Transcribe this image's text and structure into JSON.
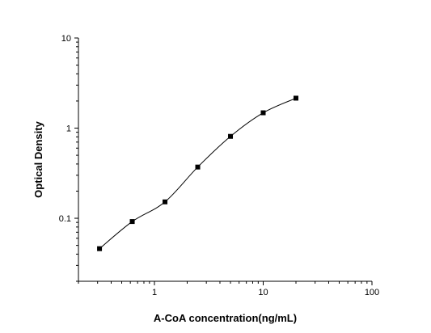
{
  "chart_data": {
    "type": "scatter",
    "title": "",
    "xlabel": "A-CoA concentration(ng/mL)",
    "ylabel": "Optical Density",
    "xscale": "log",
    "yscale": "log",
    "xlim": [
      0.2,
      100
    ],
    "ylim": [
      0.02,
      10
    ],
    "x_ticks": [
      {
        "value": 1,
        "label": "1"
      },
      {
        "value": 10,
        "label": "10"
      },
      {
        "value": 100,
        "label": "100"
      }
    ],
    "y_ticks": [
      {
        "value": 0.1,
        "label": "0.1"
      },
      {
        "value": 1,
        "label": "1"
      },
      {
        "value": 10,
        "label": "10"
      }
    ],
    "grid": false,
    "legend": "none",
    "marker": "square",
    "fit": "4-parameter logistic curve",
    "color": "#000000",
    "series": [
      {
        "x": [
          0.3125,
          0.625,
          1.25,
          2.5,
          5,
          10,
          20
        ],
        "y": [
          0.046,
          0.092,
          0.152,
          0.37,
          0.81,
          1.48,
          2.15
        ]
      }
    ]
  }
}
